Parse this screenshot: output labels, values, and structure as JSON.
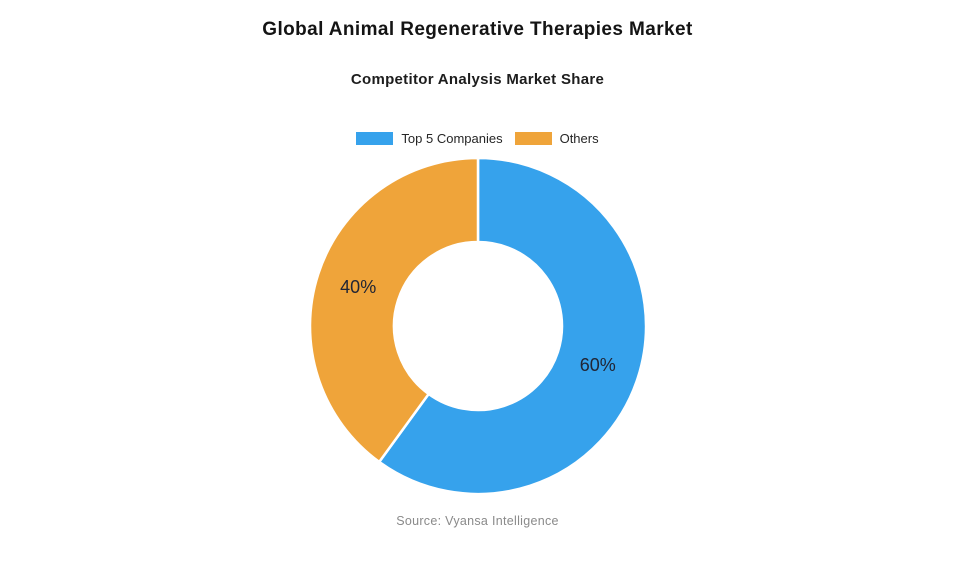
{
  "header": {
    "title": "Global Animal Regenerative Therapies Market",
    "subtitle": "Competitor Analysis Market Share"
  },
  "legend": {
    "position": "top",
    "items": [
      {
        "label": "Top 5 Companies",
        "color": "#36A2EC"
      },
      {
        "label": "Others",
        "color": "#EFA43A"
      }
    ]
  },
  "chart_data": {
    "type": "pie",
    "variant": "doughnut",
    "title": "Competitor Analysis Market Share",
    "labels": [
      "Top 5 Companies",
      "Others"
    ],
    "values": [
      60,
      40
    ],
    "unit": "%",
    "data_labels": [
      "60%",
      "40%"
    ],
    "colors": [
      "#36A2EC",
      "#EFA43A"
    ],
    "start_angle_deg": 0,
    "direction": "clockwise",
    "inner_radius_ratio": 0.5,
    "slice_border_color": "#ffffff",
    "legend_position": "top"
  },
  "footer": {
    "source": "Source: Vyansa Intelligence"
  },
  "colors": {
    "background": "#ffffff",
    "title_text": "#141414",
    "slice_label_text": "#212534",
    "source_text": "#8a8a8a"
  }
}
